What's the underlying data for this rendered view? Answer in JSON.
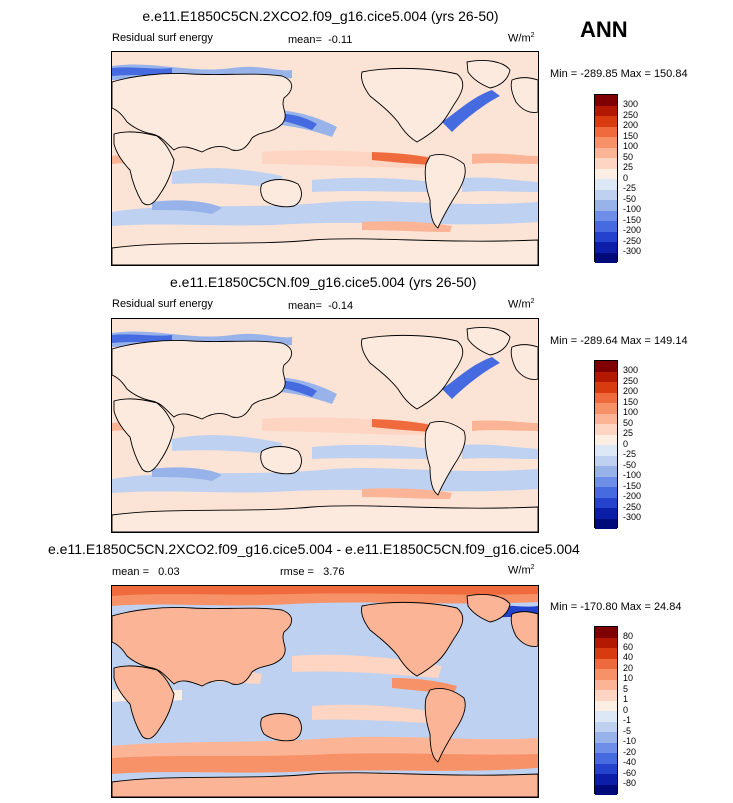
{
  "season": "ANN",
  "units": "W/m",
  "units_sup": "2",
  "panels": [
    {
      "title": "e.e11.E1850C5CN.2XCO2.f09_g16.cice5.004 (yrs 26-50)",
      "variable": "Residual surf energy",
      "mean_label": "mean=",
      "mean_value": "-0.11",
      "minmax": "Min = -289.85 Max = 150.84",
      "levels": [
        "300",
        "250",
        "200",
        "150",
        "100",
        "50",
        "25",
        "0",
        "-25",
        "-50",
        "-100",
        "-150",
        "-200",
        "-250",
        "-300"
      ]
    },
    {
      "title": "e.e11.E1850C5CN.f09_g16.cice5.004 (yrs 26-50)",
      "variable": "Residual surf energy",
      "mean_label": "mean=",
      "mean_value": "-0.14",
      "minmax": "Min = -289.64 Max = 149.14",
      "levels": [
        "300",
        "250",
        "200",
        "150",
        "100",
        "50",
        "25",
        "0",
        "-25",
        "-50",
        "-100",
        "-150",
        "-200",
        "-250",
        "-300"
      ]
    },
    {
      "title": "e.e11.E1850C5CN.2XCO2.f09_g16.cice5.004 - e.e11.E1850C5CN.f09_g16.cice5.004",
      "mean_label": "mean =",
      "mean_value": "0.03",
      "rmse_label": "rmse =",
      "rmse_value": "3.76",
      "minmax": "Min = -170.80 Max = 24.84",
      "levels": [
        "80",
        "60",
        "40",
        "20",
        "10",
        "5",
        "1",
        "0",
        "-1",
        "-5",
        "-10",
        "-20",
        "-40",
        "-60",
        "-80"
      ]
    }
  ],
  "colors": {
    "colorbar": [
      "#7f0000",
      "#b31800",
      "#d93b10",
      "#ef6a3c",
      "#f79268",
      "#fbb596",
      "#fdd5c2",
      "#fdeee4",
      "#dde8f6",
      "#bfd1f0",
      "#97b3ea",
      "#6e8ee8",
      "#466be0",
      "#2442cc",
      "#0c1ea8",
      "#000a78"
    ],
    "ocean_neutral": "#fbe3d6",
    "land": "#fdeadf",
    "coast": "#000000"
  }
}
